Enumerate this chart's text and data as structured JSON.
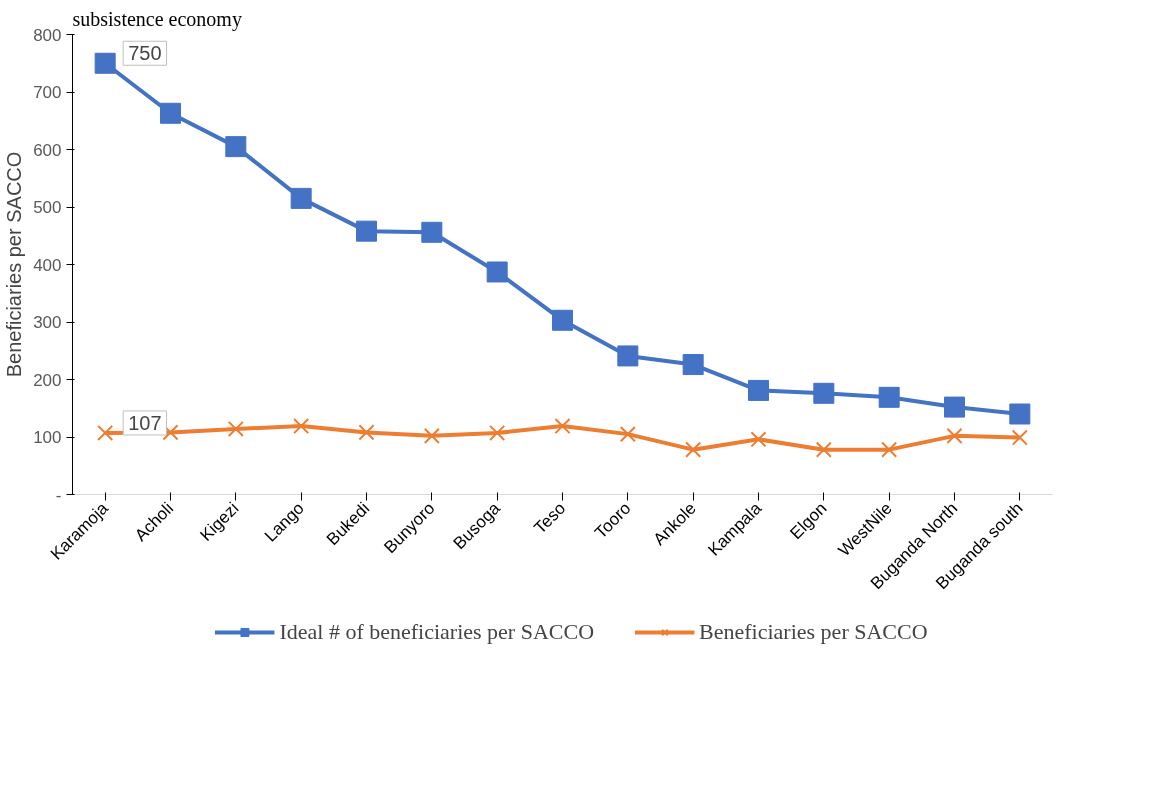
{
  "chart_data": {
    "type": "line",
    "title": "subsistence economy",
    "ylabel": "Beneficiaries per SACCO",
    "categories": [
      "Karamoja",
      "Acholi",
      "Kigezi",
      "Lango",
      "Bukedi",
      "Bunyoro",
      "Busoga",
      "Teso",
      "Tooro",
      "Ankole",
      "Kampala",
      "Elgon",
      "WestNile",
      "Buganda North",
      "Buganda south"
    ],
    "series": [
      {
        "name": "Ideal # of beneficiaries per SACCO",
        "color": "#4472c4",
        "marker": "square",
        "values": [
          750,
          663,
          605,
          515,
          458,
          456,
          387,
          303,
          241,
          226,
          181,
          176,
          169,
          152,
          140
        ],
        "value_labels": [
          "750",
          null,
          null,
          null,
          null,
          null,
          null,
          null,
          null,
          null,
          null,
          null,
          null,
          null,
          null
        ]
      },
      {
        "name": "Beneficiaries per SACCO",
        "color": "#ed7d31",
        "marker": "cross",
        "values": [
          107,
          108,
          114,
          119,
          108,
          102,
          107,
          119,
          105,
          78,
          96,
          78,
          78,
          102,
          99
        ],
        "value_labels": [
          "107",
          null,
          null,
          null,
          null,
          null,
          null,
          null,
          null,
          null,
          null,
          null,
          null,
          null,
          null
        ]
      }
    ],
    "ylim": [
      0,
      800
    ],
    "yticks": [
      {
        "value": 0,
        "label": "-"
      },
      100,
      200,
      300,
      400,
      500,
      600,
      700,
      800
    ],
    "grid": false,
    "legend": "bottom",
    "line_style": "solid"
  }
}
